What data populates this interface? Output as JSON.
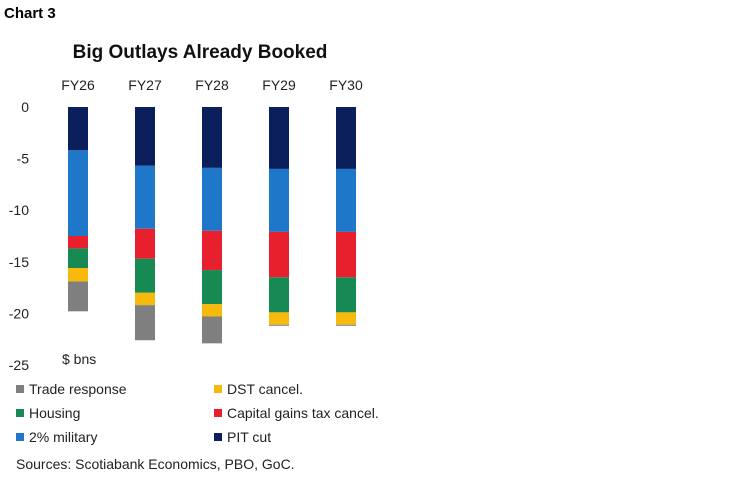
{
  "header": {
    "chart_label": "Chart 3"
  },
  "chart_data": {
    "type": "bar",
    "stacked": true,
    "title": "Big Outlays Already Booked",
    "ylabel": "$ bns",
    "ylim": [
      -25,
      0
    ],
    "yticks": [
      0,
      -5,
      -10,
      -15,
      -20,
      -25
    ],
    "categories": [
      "FY26",
      "FY27",
      "FY28",
      "FY29",
      "FY30"
    ],
    "x_axis_position": "top",
    "grid": false,
    "series": [
      {
        "name": "PIT cut",
        "color": "#0b1f5c",
        "values": [
          -4.2,
          -5.7,
          -5.9,
          -6.0,
          -6.0
        ]
      },
      {
        "name": "2% military",
        "color": "#1f77c9",
        "values": [
          -8.3,
          -6.1,
          -6.1,
          -6.1,
          -6.1
        ]
      },
      {
        "name": "Capital gains tax cancel.",
        "color": "#e8202e",
        "values": [
          -1.2,
          -2.9,
          -3.8,
          -4.4,
          -4.4
        ]
      },
      {
        "name": "Housing",
        "color": "#168a52",
        "values": [
          -1.9,
          -3.3,
          -3.3,
          -3.4,
          -3.4
        ]
      },
      {
        "name": "DST cancel.",
        "color": "#f6b90c",
        "values": [
          -1.3,
          -1.2,
          -1.2,
          -1.2,
          -1.2
        ]
      },
      {
        "name": "Trade response",
        "color": "#7f7f7f",
        "values": [
          -2.9,
          -3.4,
          -2.6,
          -0.1,
          -0.1
        ]
      }
    ],
    "legend_order": [
      "Trade response",
      "DST cancel.",
      "Housing",
      "Capital gains tax cancel.",
      "2% military",
      "PIT cut"
    ],
    "legend_position": "bottom"
  },
  "footer": {
    "sources": "Sources: Scotiabank Economics, PBO, GoC."
  }
}
